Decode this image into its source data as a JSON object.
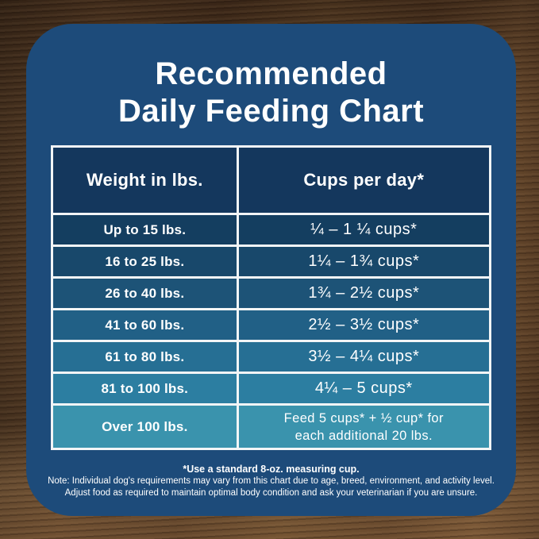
{
  "title": {
    "line1": "Recommended",
    "line2": "Daily Feeding Chart"
  },
  "chart_data": {
    "type": "table",
    "title": "Recommended Daily Feeding Chart",
    "columns": [
      "Weight in lbs.",
      "Cups per day*"
    ],
    "rows": [
      [
        "Up to 15 lbs.",
        "¼ – 1 ¼ cups*"
      ],
      [
        "16 to 25 lbs.",
        "1¼ – 1¾ cups*"
      ],
      [
        "26 to 40 lbs.",
        "1¾ – 2½ cups*"
      ],
      [
        "41 to 60 lbs.",
        "2½ – 3½ cups*"
      ],
      [
        "61 to 80 lbs.",
        "3½ – 4¼ cups*"
      ],
      [
        "81 to 100 lbs.",
        "4¼ – 5 cups*"
      ],
      [
        "Over 100 lbs.",
        "Feed 5 cups* + ½ cup* for each additional 20 lbs."
      ]
    ],
    "footnote": "*Use a standard 8-oz. measuring cup."
  },
  "table": {
    "last_row_display": {
      "line1": "Feed 5 cups* + ½ cup* for",
      "line2": "each additional 20 lbs."
    }
  },
  "footnotes": {
    "measuring_cup": "*Use a standard 8-oz. measuring cup.",
    "note_line1": "Note: Individual dog's requirements may vary from this chart due to age, breed, environment, and activity level.",
    "note_line2": "Adjust food as required to maintain optimal body condition and ask your veterinarian if you are unsure."
  },
  "colors": {
    "panel": "#1d4b7a",
    "header_row": "#14375d",
    "table_border": "#f2f5f6",
    "text": "#ffffff",
    "row_backgrounds": [
      "#143e60",
      "#18486b",
      "#1d5377",
      "#216086",
      "#266f94",
      "#2c7ea1",
      "#3a93ad"
    ]
  }
}
